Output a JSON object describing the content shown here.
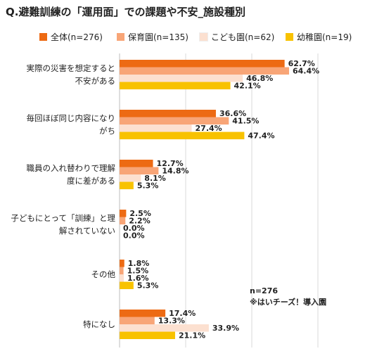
{
  "title": "Q.避難訓練の「運用面」での課題や不安_施設種別",
  "note": {
    "line1": "n=276",
    "line2": "※はいチーズ！導入園"
  },
  "chart_data": {
    "type": "bar",
    "orientation": "horizontal",
    "title": "Q.避難訓練の「運用面」での課題や不安_施設種別",
    "xlim": [
      0,
      70
    ],
    "grid": true,
    "legend_position": "top",
    "categories": [
      [
        "実際の災害を想定すると",
        "不安がある"
      ],
      [
        "毎回ほぼ同じ内容になり",
        "がち"
      ],
      [
        "職員の入れ替わりで理解",
        "度に差がある"
      ],
      [
        "子どもにとって「訓練」と理",
        "解されていない"
      ],
      [
        "その他"
      ],
      [
        "特になし"
      ]
    ],
    "series": [
      {
        "name": "全体(n=276)",
        "color": "#ED6A13",
        "values": [
          62.7,
          36.6,
          12.7,
          2.5,
          1.8,
          17.4
        ]
      },
      {
        "name": "保育園(n=135)",
        "color": "#F8A577",
        "values": [
          64.4,
          41.5,
          14.8,
          2.2,
          1.5,
          13.3
        ]
      },
      {
        "name": "こども園(n=62)",
        "color": "#FCE0D0",
        "values": [
          46.8,
          27.4,
          8.1,
          0.0,
          1.6,
          33.9
        ]
      },
      {
        "name": "幼稚園(n=19)",
        "color": "#F8C200",
        "values": [
          42.1,
          47.4,
          5.3,
          0.0,
          5.3,
          21.1
        ]
      }
    ],
    "value_suffix": "%"
  }
}
